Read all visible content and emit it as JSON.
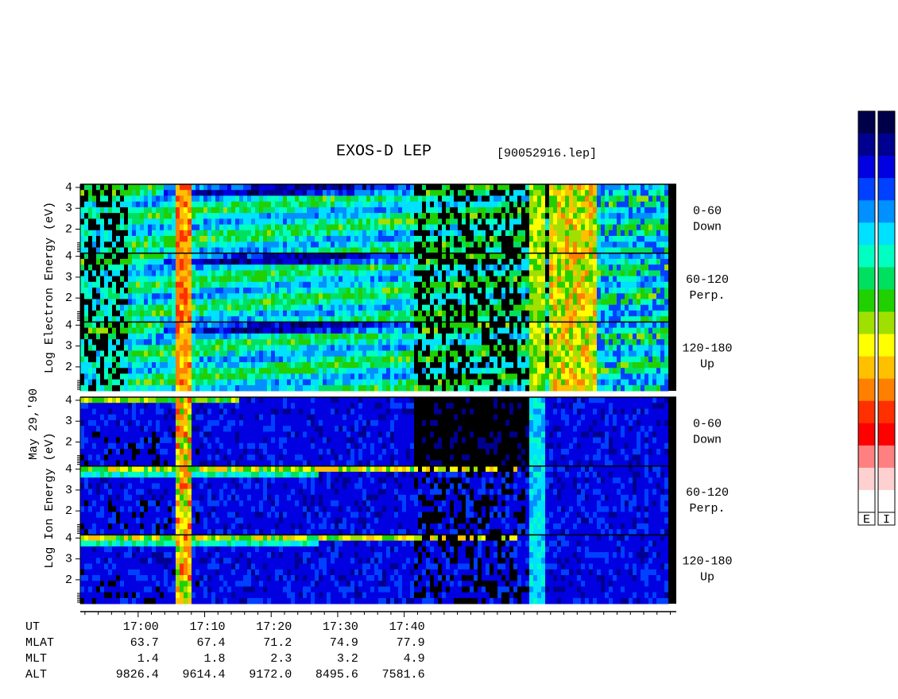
{
  "chart_data": {
    "type": "spectrogram",
    "title": "EXOS-D LEP",
    "file_label": "[90052916.lep]",
    "date_label": "May 29,'90",
    "groups": [
      {
        "label": "Log Electron Energy (eV)",
        "panels": [
          {
            "label": [
              "0-60",
              "Down"
            ]
          },
          {
            "label": [
              "60-120",
              "Perp."
            ]
          },
          {
            "label": [
              "120-180",
              "Up"
            ]
          }
        ]
      },
      {
        "label": "Log Ion Energy (eV)",
        "panels": [
          {
            "label": [
              "0-60",
              "Down"
            ]
          },
          {
            "label": [
              "60-120",
              "Perp."
            ]
          },
          {
            "label": [
              "120-180",
              "Up"
            ]
          }
        ]
      }
    ],
    "ylim": [
      0.85,
      4.15
    ],
    "yticks": [
      2,
      3,
      4
    ],
    "xlim": [
      1011.3,
      1100.9
    ],
    "xticks": [
      {
        "value": 1020,
        "label": "17:00"
      },
      {
        "value": 1030,
        "label": "17:10"
      },
      {
        "value": 1040,
        "label": "17:20"
      },
      {
        "value": 1050,
        "label": "17:30"
      },
      {
        "value": 1060,
        "label": "17:40"
      }
    ],
    "xminorticks": [
      1012,
      1014,
      1016,
      1018,
      1022,
      1024,
      1026,
      1028,
      1032,
      1034,
      1036,
      1038,
      1042,
      1044,
      1046,
      1048,
      1052,
      1054,
      1056,
      1058,
      1062,
      1064,
      1066,
      1068,
      1070,
      1072,
      1074,
      1076,
      1078,
      1080,
      1082,
      1084,
      1086,
      1088,
      1090,
      1092,
      1094,
      1096,
      1098,
      1100
    ],
    "x_axis_label": "UT",
    "ephemeris": [
      {
        "name": "MLAT",
        "values": [
          63.7,
          67.4,
          71.2,
          74.9,
          77.9
        ]
      },
      {
        "name": "MLT",
        "values": [
          1.4,
          1.8,
          2.3,
          3.2,
          4.9
        ]
      },
      {
        "name": "ALT",
        "values": [
          9826.4,
          9614.4,
          9172.0,
          8495.6,
          7581.6
        ],
        "value_labels": [
          "9826.4",
          "9614.4",
          "9172.0",
          "8495.6",
          "7581.6"
        ]
      }
    ],
    "colormap": [
      "#00004a",
      "#000090",
      "#0000e0",
      "#0040ff",
      "#0090ff",
      "#00e0ff",
      "#00ffc0",
      "#00e060",
      "#20d000",
      "#a0e000",
      "#ffff00",
      "#ffc000",
      "#ff8000",
      "#ff3000",
      "#ff0000",
      "#ff8080",
      "#ffd0d0",
      "#ffffff"
    ],
    "colorbars": [
      "E",
      "I"
    ]
  }
}
